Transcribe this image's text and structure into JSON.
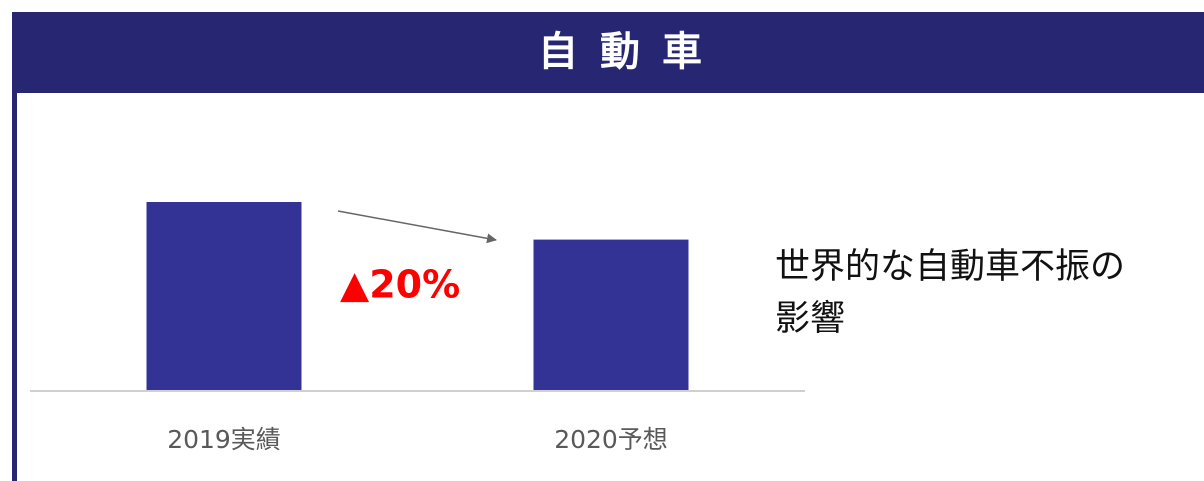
{
  "chart_data": {
    "type": "bar",
    "title": "自動車",
    "categories": [
      "2019実績",
      "2020予想"
    ],
    "values": [
      100,
      80
    ],
    "color": "#333395",
    "ylim": [
      0,
      125
    ],
    "change_label": "▲20%",
    "note": [
      "世界的な自動車不振の",
      "影響"
    ]
  }
}
